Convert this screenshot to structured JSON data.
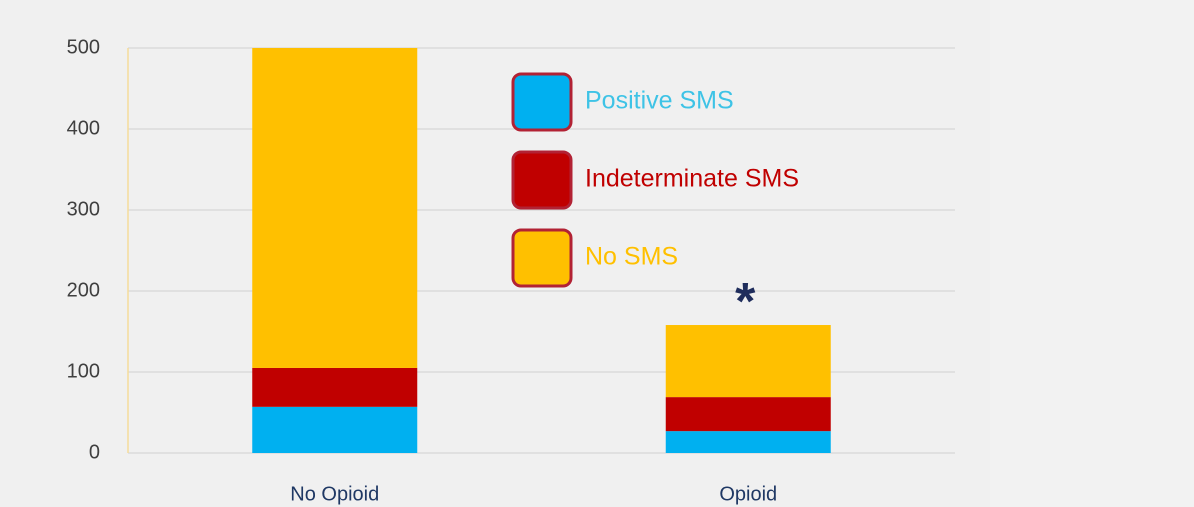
{
  "chart_data": {
    "type": "stacked_bar",
    "categories": [
      "No Opioid",
      "Opioid"
    ],
    "series": [
      {
        "name": "Positive SMS",
        "color": "#00b0f0",
        "text_color": "#3ec3e6",
        "values": [
          57,
          27
        ]
      },
      {
        "name": "Indeterminate SMS",
        "color": "#c00000",
        "text_color": "#c00000",
        "values": [
          48,
          42
        ]
      },
      {
        "name": "No SMS",
        "color": "#ffc000",
        "text_color": "#ffc000",
        "values": [
          395,
          89
        ]
      }
    ],
    "annotation": "*",
    "ylim": [
      0,
      500
    ],
    "yticks": [
      0,
      100,
      200,
      300,
      400,
      500
    ],
    "grid": true
  }
}
